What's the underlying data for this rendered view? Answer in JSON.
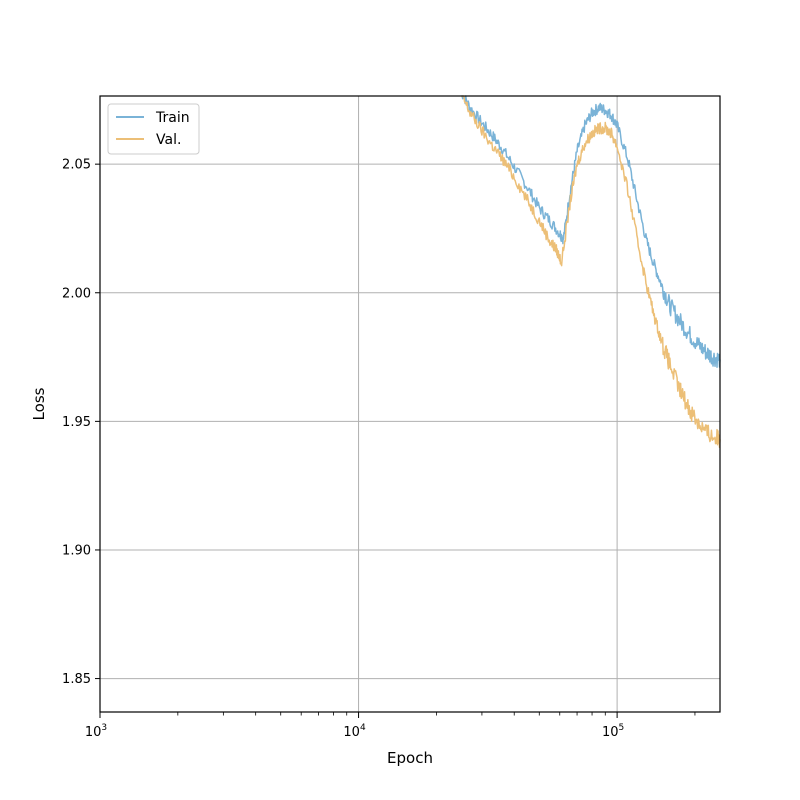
{
  "chart_data": {
    "type": "line",
    "title": "",
    "xlabel": "Epoch",
    "ylabel": "Loss",
    "xscale": "log",
    "xlim": [
      1000,
      250000
    ],
    "ylim": [
      1.837,
      2.0765
    ],
    "x_ticks": [
      {
        "value": 1000,
        "base": "10",
        "exp": "3"
      },
      {
        "value": 10000,
        "base": "10",
        "exp": "4"
      },
      {
        "value": 100000,
        "base": "10",
        "exp": "5"
      }
    ],
    "y_ticks": [
      {
        "value": 1.85,
        "label": "1.85"
      },
      {
        "value": 1.9,
        "label": "1.90"
      },
      {
        "value": 1.95,
        "label": "1.95"
      },
      {
        "value": 2.0,
        "label": "2.00"
      },
      {
        "value": 2.05,
        "label": "2.05"
      }
    ],
    "grid": true,
    "legend_position": "top-left",
    "series": [
      {
        "name": "Train",
        "color": "#7ab3d7",
        "points": [
          [
            25000,
            2.078
          ],
          [
            27000,
            2.072
          ],
          [
            30000,
            2.066
          ],
          [
            33000,
            2.061
          ],
          [
            36000,
            2.056
          ],
          [
            40000,
            2.049
          ],
          [
            45000,
            2.041
          ],
          [
            50000,
            2.033
          ],
          [
            55000,
            2.028
          ],
          [
            60000,
            2.023
          ],
          [
            62000,
            2.021
          ],
          [
            66000,
            2.04
          ],
          [
            70000,
            2.055
          ],
          [
            75000,
            2.065
          ],
          [
            80000,
            2.07
          ],
          [
            85000,
            2.072
          ],
          [
            90000,
            2.071
          ],
          [
            95000,
            2.069
          ],
          [
            100000,
            2.065
          ],
          [
            110000,
            2.052
          ],
          [
            120000,
            2.035
          ],
          [
            130000,
            2.02
          ],
          [
            140000,
            2.01
          ],
          [
            150000,
            2.002
          ],
          [
            160000,
            1.995
          ],
          [
            175000,
            1.989
          ],
          [
            190000,
            1.984
          ],
          [
            205000,
            1.98
          ],
          [
            220000,
            1.977
          ],
          [
            235000,
            1.975
          ],
          [
            250000,
            1.974
          ]
        ]
      },
      {
        "name": "Val.",
        "color": "#ecbf77",
        "points": [
          [
            25000,
            2.077
          ],
          [
            27000,
            2.07
          ],
          [
            30000,
            2.063
          ],
          [
            33000,
            2.057
          ],
          [
            36000,
            2.052
          ],
          [
            40000,
            2.045
          ],
          [
            45000,
            2.036
          ],
          [
            50000,
            2.028
          ],
          [
            55000,
            2.02
          ],
          [
            58000,
            2.017
          ],
          [
            61000,
            2.012
          ],
          [
            66000,
            2.036
          ],
          [
            70000,
            2.05
          ],
          [
            75000,
            2.058
          ],
          [
            80000,
            2.062
          ],
          [
            85000,
            2.064
          ],
          [
            90000,
            2.064
          ],
          [
            95000,
            2.062
          ],
          [
            100000,
            2.057
          ],
          [
            110000,
            2.04
          ],
          [
            120000,
            2.02
          ],
          [
            130000,
            2.003
          ],
          [
            140000,
            1.99
          ],
          [
            150000,
            1.98
          ],
          [
            160000,
            1.972
          ],
          [
            175000,
            1.962
          ],
          [
            190000,
            1.955
          ],
          [
            205000,
            1.95
          ],
          [
            220000,
            1.946
          ],
          [
            235000,
            1.944
          ],
          [
            250000,
            1.943
          ]
        ]
      }
    ]
  }
}
